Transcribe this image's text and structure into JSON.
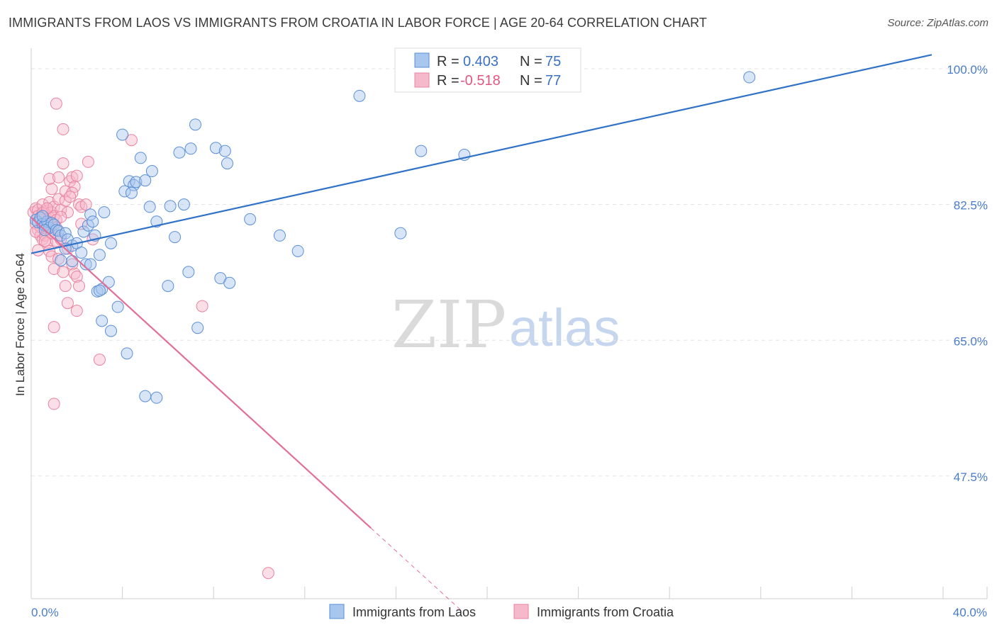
{
  "header": {
    "title": "IMMIGRANTS FROM LAOS VS IMMIGRANTS FROM CROATIA IN LABOR FORCE | AGE 20-64 CORRELATION CHART",
    "source": "Source: ZipAtlas.com"
  },
  "watermark": {
    "zip": "ZIP",
    "atlas": "atlas"
  },
  "colors": {
    "blue_fill": "#a9c6ee",
    "blue_stroke": "#5b8fd6",
    "blue_line": "#2f72c8",
    "pink_fill": "#f6b8cb",
    "pink_stroke": "#e8839f",
    "pink_line": "#e26f97",
    "grid": "#e3e3e3",
    "axis_text": "#4a7cc9"
  },
  "legend": {
    "r_label": "R =",
    "n_label": "N =",
    "laos": {
      "r": "0.403",
      "n": "75"
    },
    "croatia": {
      "r": "-0.518",
      "n": "77"
    }
  },
  "chart_data": {
    "type": "scatter",
    "title": "IMMIGRANTS FROM LAOS VS IMMIGRANTS FROM CROATIA IN LABOR FORCE | AGE 20-64 CORRELATION CHART",
    "xlabel": "",
    "ylabel": "In Labor Force | Age 20-64",
    "xlim": [
      0,
      40
    ],
    "ylim": [
      29,
      102
    ],
    "x_tick_labels": [
      "0.0%",
      "40.0%"
    ],
    "y_ticks": [
      100,
      82.5,
      65,
      47.5
    ],
    "y_tick_labels": [
      "100.0%",
      "82.5%",
      "65.0%",
      "47.5%"
    ],
    "grid": true,
    "legend_position": "top-center",
    "series": [
      {
        "name": "Immigrants from Laos",
        "color": "#5b8fd6",
        "r": 0.403,
        "n": 75,
        "trendline": {
          "x": [
            0,
            39.5
          ],
          "y": [
            76.2,
            101.8
          ]
        },
        "points": [
          [
            0.2,
            80.5
          ],
          [
            0.3,
            80.2
          ],
          [
            0.4,
            80.8
          ],
          [
            0.5,
            80.0
          ],
          [
            0.6,
            79.8
          ],
          [
            0.7,
            80.3
          ],
          [
            0.8,
            79.5
          ],
          [
            0.9,
            80.1
          ],
          [
            0.5,
            81.0
          ],
          [
            0.6,
            79.2
          ],
          [
            1.0,
            79.9
          ],
          [
            1.1,
            79.2
          ],
          [
            1.2,
            79.1
          ],
          [
            1.3,
            78.5
          ],
          [
            1.5,
            78.8
          ],
          [
            1.6,
            78.0
          ],
          [
            1.8,
            77.2
          ],
          [
            2.0,
            77.5
          ],
          [
            2.2,
            76.3
          ],
          [
            2.3,
            79.0
          ],
          [
            2.5,
            79.8
          ],
          [
            2.6,
            81.2
          ],
          [
            2.7,
            80.3
          ],
          [
            2.8,
            78.5
          ],
          [
            3.0,
            76.0
          ],
          [
            1.5,
            76.8
          ],
          [
            1.8,
            75.2
          ],
          [
            2.4,
            74.8
          ],
          [
            2.6,
            74.8
          ],
          [
            1.3,
            75.3
          ],
          [
            3.2,
            81.5
          ],
          [
            3.5,
            77.5
          ],
          [
            3.4,
            72.5
          ],
          [
            2.9,
            71.3
          ],
          [
            3.1,
            71.6
          ],
          [
            3.0,
            71.4
          ],
          [
            3.1,
            67.5
          ],
          [
            3.5,
            66.2
          ],
          [
            3.8,
            69.3
          ],
          [
            4.2,
            63.3
          ],
          [
            4.1,
            84.2
          ],
          [
            4.3,
            85.5
          ],
          [
            4.5,
            85.0
          ],
          [
            4.4,
            84.0
          ],
          [
            4.6,
            85.4
          ],
          [
            5.0,
            85.6
          ],
          [
            4.8,
            88.5
          ],
          [
            5.2,
            82.2
          ],
          [
            5.3,
            86.8
          ],
          [
            5.5,
            80.3
          ],
          [
            6.0,
            72.0
          ],
          [
            6.1,
            82.3
          ],
          [
            6.3,
            78.3
          ],
          [
            6.5,
            89.2
          ],
          [
            6.7,
            82.5
          ],
          [
            6.9,
            73.8
          ],
          [
            7.0,
            89.7
          ],
          [
            7.2,
            92.8
          ],
          [
            7.3,
            66.6
          ],
          [
            8.1,
            89.8
          ],
          [
            8.3,
            73.0
          ],
          [
            8.5,
            89.4
          ],
          [
            8.6,
            87.8
          ],
          [
            8.7,
            72.4
          ],
          [
            9.6,
            80.6
          ],
          [
            10.9,
            78.5
          ],
          [
            11.7,
            76.5
          ],
          [
            4.0,
            91.5
          ],
          [
            14.4,
            96.5
          ],
          [
            16.2,
            78.8
          ],
          [
            17.1,
            89.4
          ],
          [
            19.0,
            88.9
          ],
          [
            31.5,
            98.9
          ],
          [
            5.0,
            57.8
          ],
          [
            5.5,
            57.6
          ]
        ]
      },
      {
        "name": "Immigrants from Croatia",
        "color": "#e8839f",
        "r": -0.518,
        "n": 77,
        "trendline": {
          "x": [
            0,
            14.9
          ],
          "y": [
            80.8,
            40.8
          ]
        },
        "trendline_extension": {
          "x": [
            14.9,
            19.0
          ],
          "y": [
            40.8,
            29.8
          ]
        },
        "points": [
          [
            0.1,
            81.5
          ],
          [
            0.2,
            80.0
          ],
          [
            0.2,
            82.0
          ],
          [
            0.3,
            79.2
          ],
          [
            0.3,
            81.8
          ],
          [
            0.4,
            80.6
          ],
          [
            0.4,
            78.5
          ],
          [
            0.5,
            82.5
          ],
          [
            0.5,
            80.2
          ],
          [
            0.6,
            81.2
          ],
          [
            0.6,
            79.5
          ],
          [
            0.7,
            81.7
          ],
          [
            0.7,
            80.0
          ],
          [
            0.8,
            82.8
          ],
          [
            0.8,
            80.8
          ],
          [
            0.9,
            81.5
          ],
          [
            0.9,
            79.8
          ],
          [
            1.0,
            82.2
          ],
          [
            1.0,
            81.0
          ],
          [
            1.1,
            80.5
          ],
          [
            1.2,
            83.2
          ],
          [
            1.3,
            81.8
          ],
          [
            1.5,
            83.0
          ],
          [
            1.5,
            84.2
          ],
          [
            1.6,
            81.5
          ],
          [
            1.7,
            85.5
          ],
          [
            1.8,
            86.0
          ],
          [
            1.9,
            84.8
          ],
          [
            2.0,
            86.2
          ],
          [
            2.1,
            82.5
          ],
          [
            2.2,
            80.0
          ],
          [
            0.3,
            76.6
          ],
          [
            0.5,
            78.0
          ],
          [
            0.6,
            78.5
          ],
          [
            0.7,
            77.6
          ],
          [
            0.8,
            76.5
          ],
          [
            0.9,
            75.8
          ],
          [
            1.0,
            74.2
          ],
          [
            1.1,
            77.8
          ],
          [
            1.2,
            75.5
          ],
          [
            1.3,
            78.0
          ],
          [
            1.4,
            73.8
          ],
          [
            1.5,
            72.0
          ],
          [
            1.6,
            76.8
          ],
          [
            1.8,
            74.8
          ],
          [
            1.9,
            73.6
          ],
          [
            2.0,
            73.2
          ],
          [
            2.1,
            72.0
          ],
          [
            2.2,
            82.2
          ],
          [
            2.4,
            82.5
          ],
          [
            2.7,
            78.0
          ],
          [
            1.6,
            69.8
          ],
          [
            2.0,
            68.8
          ],
          [
            1.0,
            66.7
          ],
          [
            1.4,
            87.8
          ],
          [
            0.8,
            85.8
          ],
          [
            1.8,
            84.0
          ],
          [
            2.5,
            88.0
          ],
          [
            1.4,
            92.2
          ],
          [
            1.1,
            95.5
          ],
          [
            4.4,
            90.8
          ],
          [
            3.0,
            62.5
          ],
          [
            7.5,
            69.4
          ],
          [
            1.0,
            56.8
          ],
          [
            10.4,
            35.0
          ],
          [
            1.2,
            86.0
          ],
          [
            0.9,
            84.5
          ],
          [
            0.4,
            79.6
          ],
          [
            0.6,
            77.8
          ],
          [
            0.3,
            81.0
          ],
          [
            0.5,
            81.4
          ],
          [
            0.7,
            82.0
          ],
          [
            0.9,
            78.8
          ],
          [
            1.1,
            79.5
          ],
          [
            1.3,
            80.9
          ],
          [
            0.2,
            79.0
          ],
          [
            1.7,
            83.5
          ]
        ]
      }
    ]
  },
  "axes": {
    "ylabel": "In Labor Force | Age 20-64",
    "x_min_label": "0.0%",
    "x_max_label": "40.0%",
    "y_labels": [
      "100.0%",
      "82.5%",
      "65.0%",
      "47.5%"
    ]
  },
  "bottom_legend": {
    "laos": "Immigrants from Laos",
    "croatia": "Immigrants from Croatia"
  }
}
